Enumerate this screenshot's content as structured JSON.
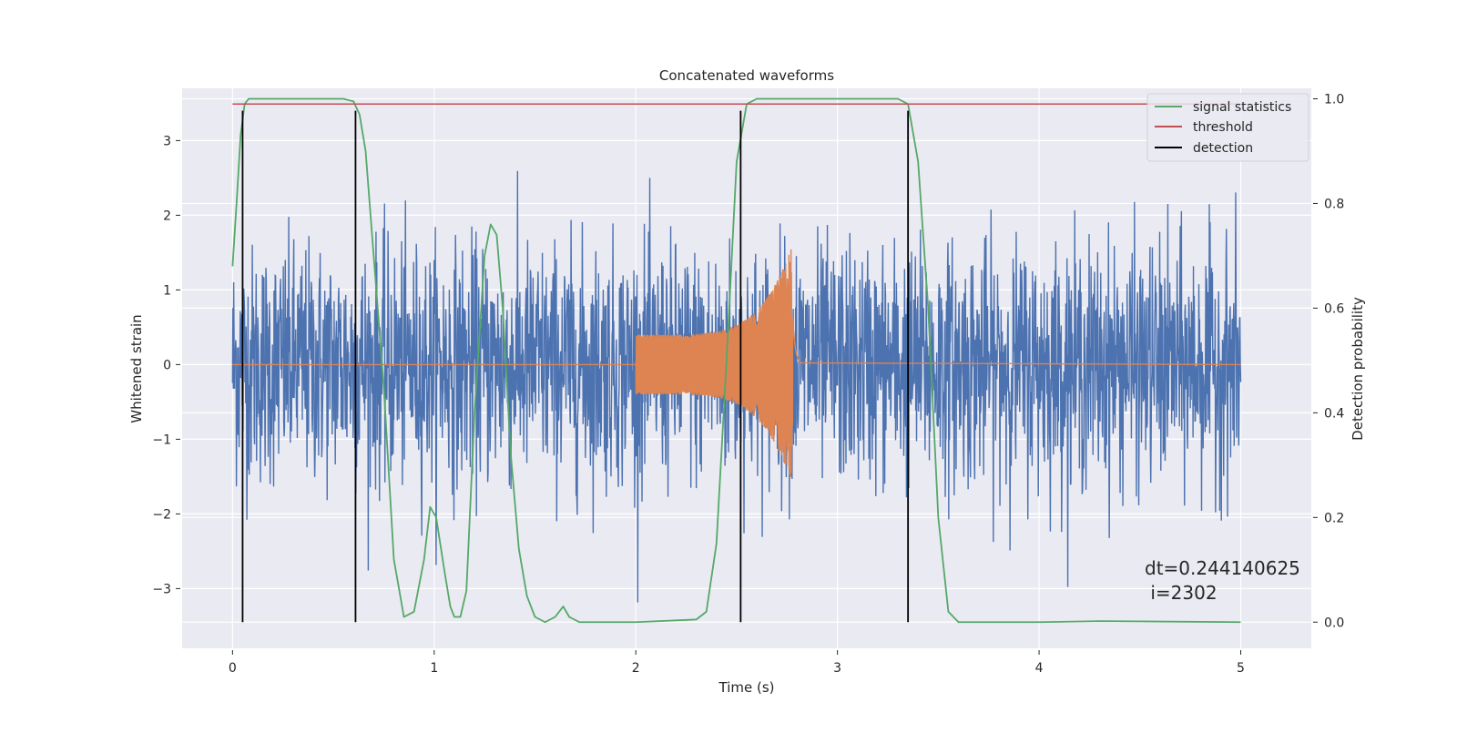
{
  "chart_data": {
    "type": "line",
    "title": "Concatenated waveforms",
    "xlabel": "Time (s)",
    "ylabel_left": "Whitened strain",
    "ylabel_right": "Detection probability",
    "xlim": [
      -0.25,
      5.35
    ],
    "ylim_left": [
      -3.8,
      3.7
    ],
    "ylim_right": [
      -0.05,
      1.02
    ],
    "x_ticks": [
      0,
      1,
      2,
      3,
      4,
      5
    ],
    "y_ticks_left": [
      -3,
      -2,
      -1,
      0,
      1,
      2,
      3
    ],
    "y_ticks_right": [
      0.0,
      0.2,
      0.4,
      0.6,
      0.8,
      1.0
    ],
    "x_tick_labels": [
      "0",
      "1",
      "2",
      "3",
      "4",
      "5"
    ],
    "y_tick_labels_left": [
      "−3",
      "−2",
      "−1",
      "0",
      "1",
      "2",
      "3"
    ],
    "y_tick_labels_right": [
      "0.0",
      "0.2",
      "0.4",
      "0.6",
      "0.8",
      "1.0"
    ],
    "grid": true,
    "legend_position": "top-right",
    "colors": {
      "background": "#eaeaf2",
      "grid": "#ffffff",
      "noise": "#4c72b0",
      "signal": "#dd8452",
      "statistics": "#55a868",
      "threshold": "#c44e52",
      "detection": "#000000"
    },
    "series": [
      {
        "name": "signal statistics",
        "axis": "right",
        "x": [
          0.0,
          0.02,
          0.04,
          0.06,
          0.08,
          0.1,
          0.3,
          0.55,
          0.6,
          0.63,
          0.66,
          0.7,
          0.75,
          0.8,
          0.85,
          0.9,
          0.95,
          0.98,
          1.01,
          1.05,
          1.08,
          1.1,
          1.13,
          1.16,
          1.2,
          1.25,
          1.28,
          1.31,
          1.34,
          1.38,
          1.42,
          1.46,
          1.5,
          1.55,
          1.6,
          1.64,
          1.67,
          1.72,
          2.0,
          2.3,
          2.35,
          2.4,
          2.45,
          2.5,
          2.55,
          2.6,
          3.3,
          3.35,
          3.4,
          3.45,
          3.5,
          3.55,
          3.6,
          4.0,
          4.3,
          5.0
        ],
        "y": [
          0.68,
          0.8,
          0.93,
          0.99,
          1.0,
          1.0,
          1.0,
          1.0,
          0.995,
          0.97,
          0.9,
          0.7,
          0.45,
          0.12,
          0.01,
          0.02,
          0.12,
          0.22,
          0.2,
          0.1,
          0.03,
          0.01,
          0.01,
          0.06,
          0.4,
          0.7,
          0.76,
          0.74,
          0.6,
          0.32,
          0.14,
          0.05,
          0.01,
          0.0,
          0.01,
          0.03,
          0.01,
          0.0,
          0.0,
          0.005,
          0.02,
          0.15,
          0.5,
          0.88,
          0.99,
          1.0,
          1.0,
          0.99,
          0.88,
          0.6,
          0.2,
          0.02,
          0.0,
          0.0,
          0.002,
          0.0
        ]
      },
      {
        "name": "threshold",
        "axis": "right",
        "x": [
          0.0,
          5.0
        ],
        "y": [
          0.99,
          0.99
        ]
      },
      {
        "name": "detection",
        "axis": "left",
        "x": [
          0.05,
          0.61,
          2.52,
          3.35
        ],
        "y_range": [
          -3.45,
          3.4
        ]
      }
    ],
    "noise_series": {
      "axis": "left",
      "x_range": [
        0.0,
        5.0
      ],
      "typical_amplitude": 1.1,
      "peak_amplitude": 3.4
    },
    "signal_series": {
      "axis": "left",
      "x_start": 2.0,
      "x_peak": 2.77,
      "x_end": 2.82,
      "start_amplitude": 0.4,
      "peak_amplitude": 1.55
    },
    "annotation": {
      "dt": "dt=0.244140625",
      "i": " i=2302"
    }
  }
}
